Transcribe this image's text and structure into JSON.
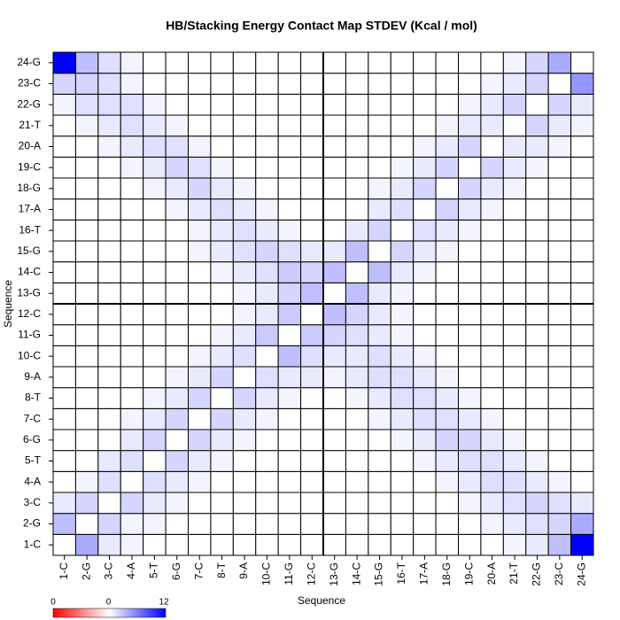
{
  "chart_data": {
    "type": "heatmap",
    "title": "HB/Stacking Energy Contact Map STDEV (Kcal / mol)",
    "x_label": "Sequence",
    "y_label": "Sequence",
    "x_categories": [
      "1-C",
      "2-G",
      "3-C",
      "4-A",
      "5-T",
      "6-G",
      "7-C",
      "8-T",
      "9-A",
      "10-C",
      "11-G",
      "12-C",
      "13-G",
      "14-C",
      "15-G",
      "16-T",
      "17-A",
      "18-G",
      "19-C",
      "20-A",
      "21-T",
      "22-G",
      "23-C",
      "24-G"
    ],
    "y_categories": [
      "1-C",
      "2-G",
      "3-C",
      "4-A",
      "5-T",
      "6-G",
      "7-C",
      "8-T",
      "9-A",
      "10-C",
      "11-G",
      "12-C",
      "13-G",
      "14-C",
      "15-G",
      "16-T",
      "17-A",
      "18-G",
      "19-C",
      "20-A",
      "21-T",
      "22-G",
      "23-C",
      "24-G"
    ],
    "values": [
      [
        0,
        4,
        1,
        0.5,
        0,
        0,
        0,
        0,
        0,
        0,
        0,
        0,
        0,
        0,
        0,
        0,
        0,
        0,
        0,
        0,
        0.5,
        1,
        3,
        12
      ],
      [
        3,
        0,
        2,
        0.5,
        0.5,
        0,
        0,
        0,
        0,
        0,
        0,
        0,
        0,
        0,
        0,
        0,
        0,
        0,
        0,
        0.5,
        1,
        1.5,
        2,
        4
      ],
      [
        1,
        2,
        0,
        2,
        1,
        0.5,
        0,
        0,
        0,
        0,
        0,
        0,
        0,
        0,
        0,
        0,
        0,
        0,
        0.5,
        1,
        1.5,
        2,
        1.5,
        1
      ],
      [
        0,
        0.5,
        1.5,
        0,
        1.5,
        1,
        0.5,
        0,
        0,
        0,
        0,
        0,
        0,
        0,
        0,
        0,
        0,
        0.5,
        1,
        1.5,
        1.5,
        1,
        0.5,
        0
      ],
      [
        0,
        0,
        1,
        1.5,
        0,
        2,
        1,
        0.5,
        0,
        0,
        0,
        0,
        0,
        0,
        0,
        0,
        0.5,
        1,
        1.5,
        1.5,
        1,
        0.5,
        0,
        0
      ],
      [
        0,
        0,
        0,
        1,
        2,
        0,
        2,
        1,
        0.5,
        0,
        0,
        0,
        0,
        0,
        0,
        0.5,
        1,
        2,
        2,
        1,
        0.5,
        0,
        0,
        0
      ],
      [
        0,
        0,
        0,
        0.5,
        1,
        2,
        0,
        2,
        1,
        0.5,
        0,
        0,
        0,
        0,
        0.5,
        1,
        1.5,
        1.5,
        1,
        0.5,
        0,
        0,
        0,
        0
      ],
      [
        0,
        0,
        0,
        0,
        0.5,
        1,
        2,
        0,
        2,
        1,
        0.5,
        0,
        0,
        0.5,
        1,
        1.5,
        1.5,
        1,
        0.5,
        0,
        0,
        0,
        0,
        0
      ],
      [
        0,
        0,
        0,
        0,
        0,
        0.5,
        1,
        2,
        0,
        1.5,
        1,
        1,
        0.5,
        1,
        1.5,
        1.5,
        1,
        0.5,
        0,
        0,
        0,
        0,
        0,
        0
      ],
      [
        0,
        0,
        0,
        0,
        0,
        0,
        0.5,
        1,
        1.5,
        0,
        3,
        1.5,
        1,
        1,
        1.5,
        1,
        0.5,
        0,
        0,
        0,
        0,
        0,
        0,
        0
      ],
      [
        0,
        0,
        0,
        0,
        0,
        0,
        0,
        0.5,
        1,
        2.5,
        0,
        2.5,
        2,
        1.5,
        1,
        0.5,
        0,
        0,
        0,
        0,
        0,
        0,
        0,
        0
      ],
      [
        0,
        0,
        0,
        0,
        0,
        0,
        0,
        0,
        0.5,
        1,
        2.5,
        0,
        3,
        2,
        1,
        0.5,
        0,
        0,
        0,
        0,
        0,
        0,
        0,
        0
      ],
      [
        0,
        0,
        0,
        0,
        0,
        0,
        0,
        0,
        0.5,
        1,
        2,
        3,
        0,
        3,
        1,
        0.5,
        0,
        0,
        0,
        0,
        0,
        0,
        0,
        0
      ],
      [
        0,
        0,
        0,
        0,
        0,
        0,
        0,
        0.5,
        1,
        1.5,
        2.5,
        2,
        3,
        0,
        3,
        1,
        0.5,
        0,
        0,
        0,
        0,
        0,
        0,
        0
      ],
      [
        0,
        0,
        0,
        0,
        0,
        0,
        0.5,
        1,
        1.5,
        2,
        1.5,
        1,
        1,
        3,
        0,
        2,
        1,
        0.5,
        0,
        0,
        0,
        0,
        0,
        0
      ],
      [
        0,
        0,
        0,
        0,
        0,
        0,
        0.5,
        1,
        1.5,
        1,
        0.5,
        0,
        0,
        1,
        2,
        0,
        1.5,
        1,
        0.5,
        0,
        0,
        0,
        0,
        0
      ],
      [
        0,
        0,
        0,
        0,
        0,
        0.5,
        1,
        1.5,
        1,
        0.5,
        0,
        0,
        0,
        0,
        1,
        1.5,
        0,
        2,
        1,
        0.5,
        0,
        0,
        0,
        0
      ],
      [
        0,
        0,
        0,
        0,
        0.5,
        1,
        2,
        1,
        0.5,
        0,
        0,
        0,
        0,
        0,
        0.5,
        1,
        2,
        0,
        2,
        1,
        0.5,
        0,
        0,
        0
      ],
      [
        0,
        0,
        0,
        0.5,
        1,
        2,
        1.5,
        0.5,
        0,
        0,
        0,
        0,
        0,
        0,
        0,
        0.5,
        1,
        2,
        0,
        2,
        1,
        0.5,
        0,
        0
      ],
      [
        0,
        0,
        0.5,
        1,
        1.5,
        1.5,
        0.5,
        0,
        0,
        0,
        0,
        0,
        0,
        0,
        0,
        0,
        0.5,
        1,
        2,
        0,
        1,
        1,
        0.5,
        0
      ],
      [
        0,
        0.5,
        1,
        1.5,
        1,
        0.5,
        0,
        0,
        0,
        0,
        0,
        0,
        0,
        0,
        0,
        0,
        0,
        0.5,
        1,
        1,
        0,
        2,
        1,
        0.5
      ],
      [
        0.5,
        1.5,
        1.5,
        1.5,
        0.5,
        0,
        0,
        0,
        0,
        0,
        0,
        0,
        0,
        0,
        0,
        0,
        0,
        0,
        0.5,
        1,
        2,
        0,
        2,
        1
      ],
      [
        2,
        2,
        1.5,
        0.5,
        0,
        0,
        0,
        0,
        0,
        0,
        0,
        0,
        0,
        0,
        0,
        0,
        0,
        0,
        0,
        0.5,
        1,
        2,
        0,
        5
      ],
      [
        12,
        3,
        1.5,
        0.5,
        0,
        0,
        0,
        0,
        0,
        0,
        0,
        0,
        0,
        0,
        0,
        0,
        0,
        0,
        0,
        0,
        0.5,
        2,
        4,
        0
      ]
    ],
    "zlim": [
      -12,
      12
    ],
    "low_color": "#ff0000",
    "mid_color": "#ffffff",
    "high_color": "#0000ff",
    "colorbar_labels": [
      "0",
      "0",
      "12"
    ]
  }
}
